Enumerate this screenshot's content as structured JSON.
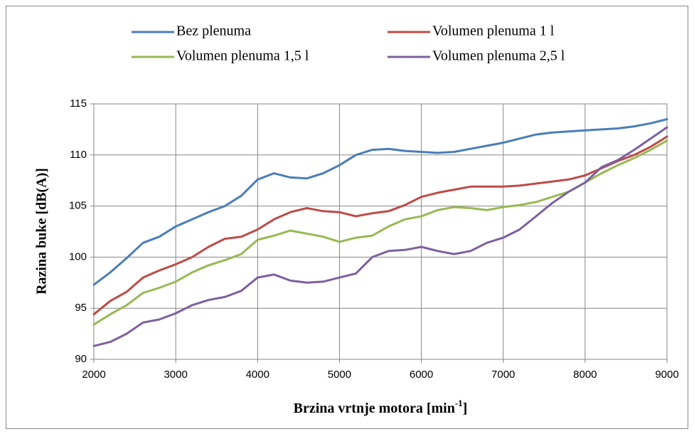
{
  "chart_data": {
    "type": "line",
    "ylabel": "Razina buke [dB(A)]",
    "xlabel": {
      "text": "Brzina vrtnje motora [min",
      "sup": "-1",
      "end": "]"
    },
    "x": [
      2000,
      2200,
      2400,
      2600,
      2800,
      3000,
      3200,
      3400,
      3600,
      3800,
      4000,
      4200,
      4400,
      4600,
      4800,
      5000,
      5200,
      5400,
      5600,
      5800,
      6000,
      6200,
      6400,
      6600,
      6800,
      7000,
      7200,
      7400,
      7600,
      7800,
      8000,
      8200,
      8400,
      8600,
      8800,
      9000
    ],
    "series": [
      {
        "name": "Bez plenuma",
        "color": "#4a7ebb",
        "values": [
          97.3,
          98.5,
          99.9,
          101.4,
          102.0,
          103.0,
          103.7,
          104.4,
          105.0,
          106.0,
          107.6,
          108.2,
          107.8,
          107.7,
          108.2,
          109.0,
          110.0,
          110.5,
          110.6,
          110.4,
          110.3,
          110.2,
          110.3,
          110.6,
          110.9,
          111.2,
          111.6,
          112.0,
          112.2,
          112.3,
          112.4,
          112.5,
          112.6,
          112.8,
          113.1,
          113.5
        ]
      },
      {
        "name": "Volumen plenuma 1 l",
        "color": "#be4b48",
        "values": [
          94.4,
          95.7,
          96.6,
          98.0,
          98.7,
          99.3,
          100.0,
          101.0,
          101.8,
          102.0,
          102.7,
          103.7,
          104.4,
          104.8,
          104.5,
          104.4,
          104.0,
          104.3,
          104.5,
          105.1,
          105.9,
          106.3,
          106.6,
          106.9,
          106.9,
          106.9,
          107.0,
          107.2,
          107.4,
          107.6,
          108.0,
          108.7,
          109.4,
          110.0,
          110.8,
          111.8
        ]
      },
      {
        "name": "Volumen plenuma 1,5 l",
        "color": "#98b954",
        "values": [
          93.4,
          94.4,
          95.3,
          96.5,
          97.0,
          97.6,
          98.5,
          99.2,
          99.7,
          100.3,
          101.7,
          102.1,
          102.6,
          102.3,
          102.0,
          101.5,
          101.9,
          102.1,
          103.0,
          103.7,
          104.0,
          104.6,
          104.9,
          104.8,
          104.6,
          104.9,
          105.1,
          105.4,
          105.9,
          106.4,
          107.3,
          108.2,
          109.0,
          109.7,
          110.5,
          111.4
        ]
      },
      {
        "name": "Volumen plenuma 2,5 l",
        "color": "#7d60a0",
        "values": [
          91.3,
          91.7,
          92.5,
          93.6,
          93.9,
          94.5,
          95.3,
          95.8,
          96.1,
          96.7,
          98.0,
          98.3,
          97.7,
          97.5,
          97.6,
          98.0,
          98.4,
          100.0,
          100.6,
          100.7,
          101.0,
          100.6,
          100.3,
          100.6,
          101.4,
          101.9,
          102.7,
          104.0,
          105.3,
          106.4,
          107.3,
          108.8,
          109.5,
          110.5,
          111.6,
          112.7
        ]
      }
    ],
    "xlim": [
      2000,
      9000
    ],
    "xticks": [
      2000,
      3000,
      4000,
      5000,
      6000,
      7000,
      8000,
      9000
    ],
    "ylim": [
      90,
      115
    ],
    "yticks": [
      90,
      95,
      100,
      105,
      110,
      115
    ],
    "grid": true,
    "legend": "top"
  }
}
